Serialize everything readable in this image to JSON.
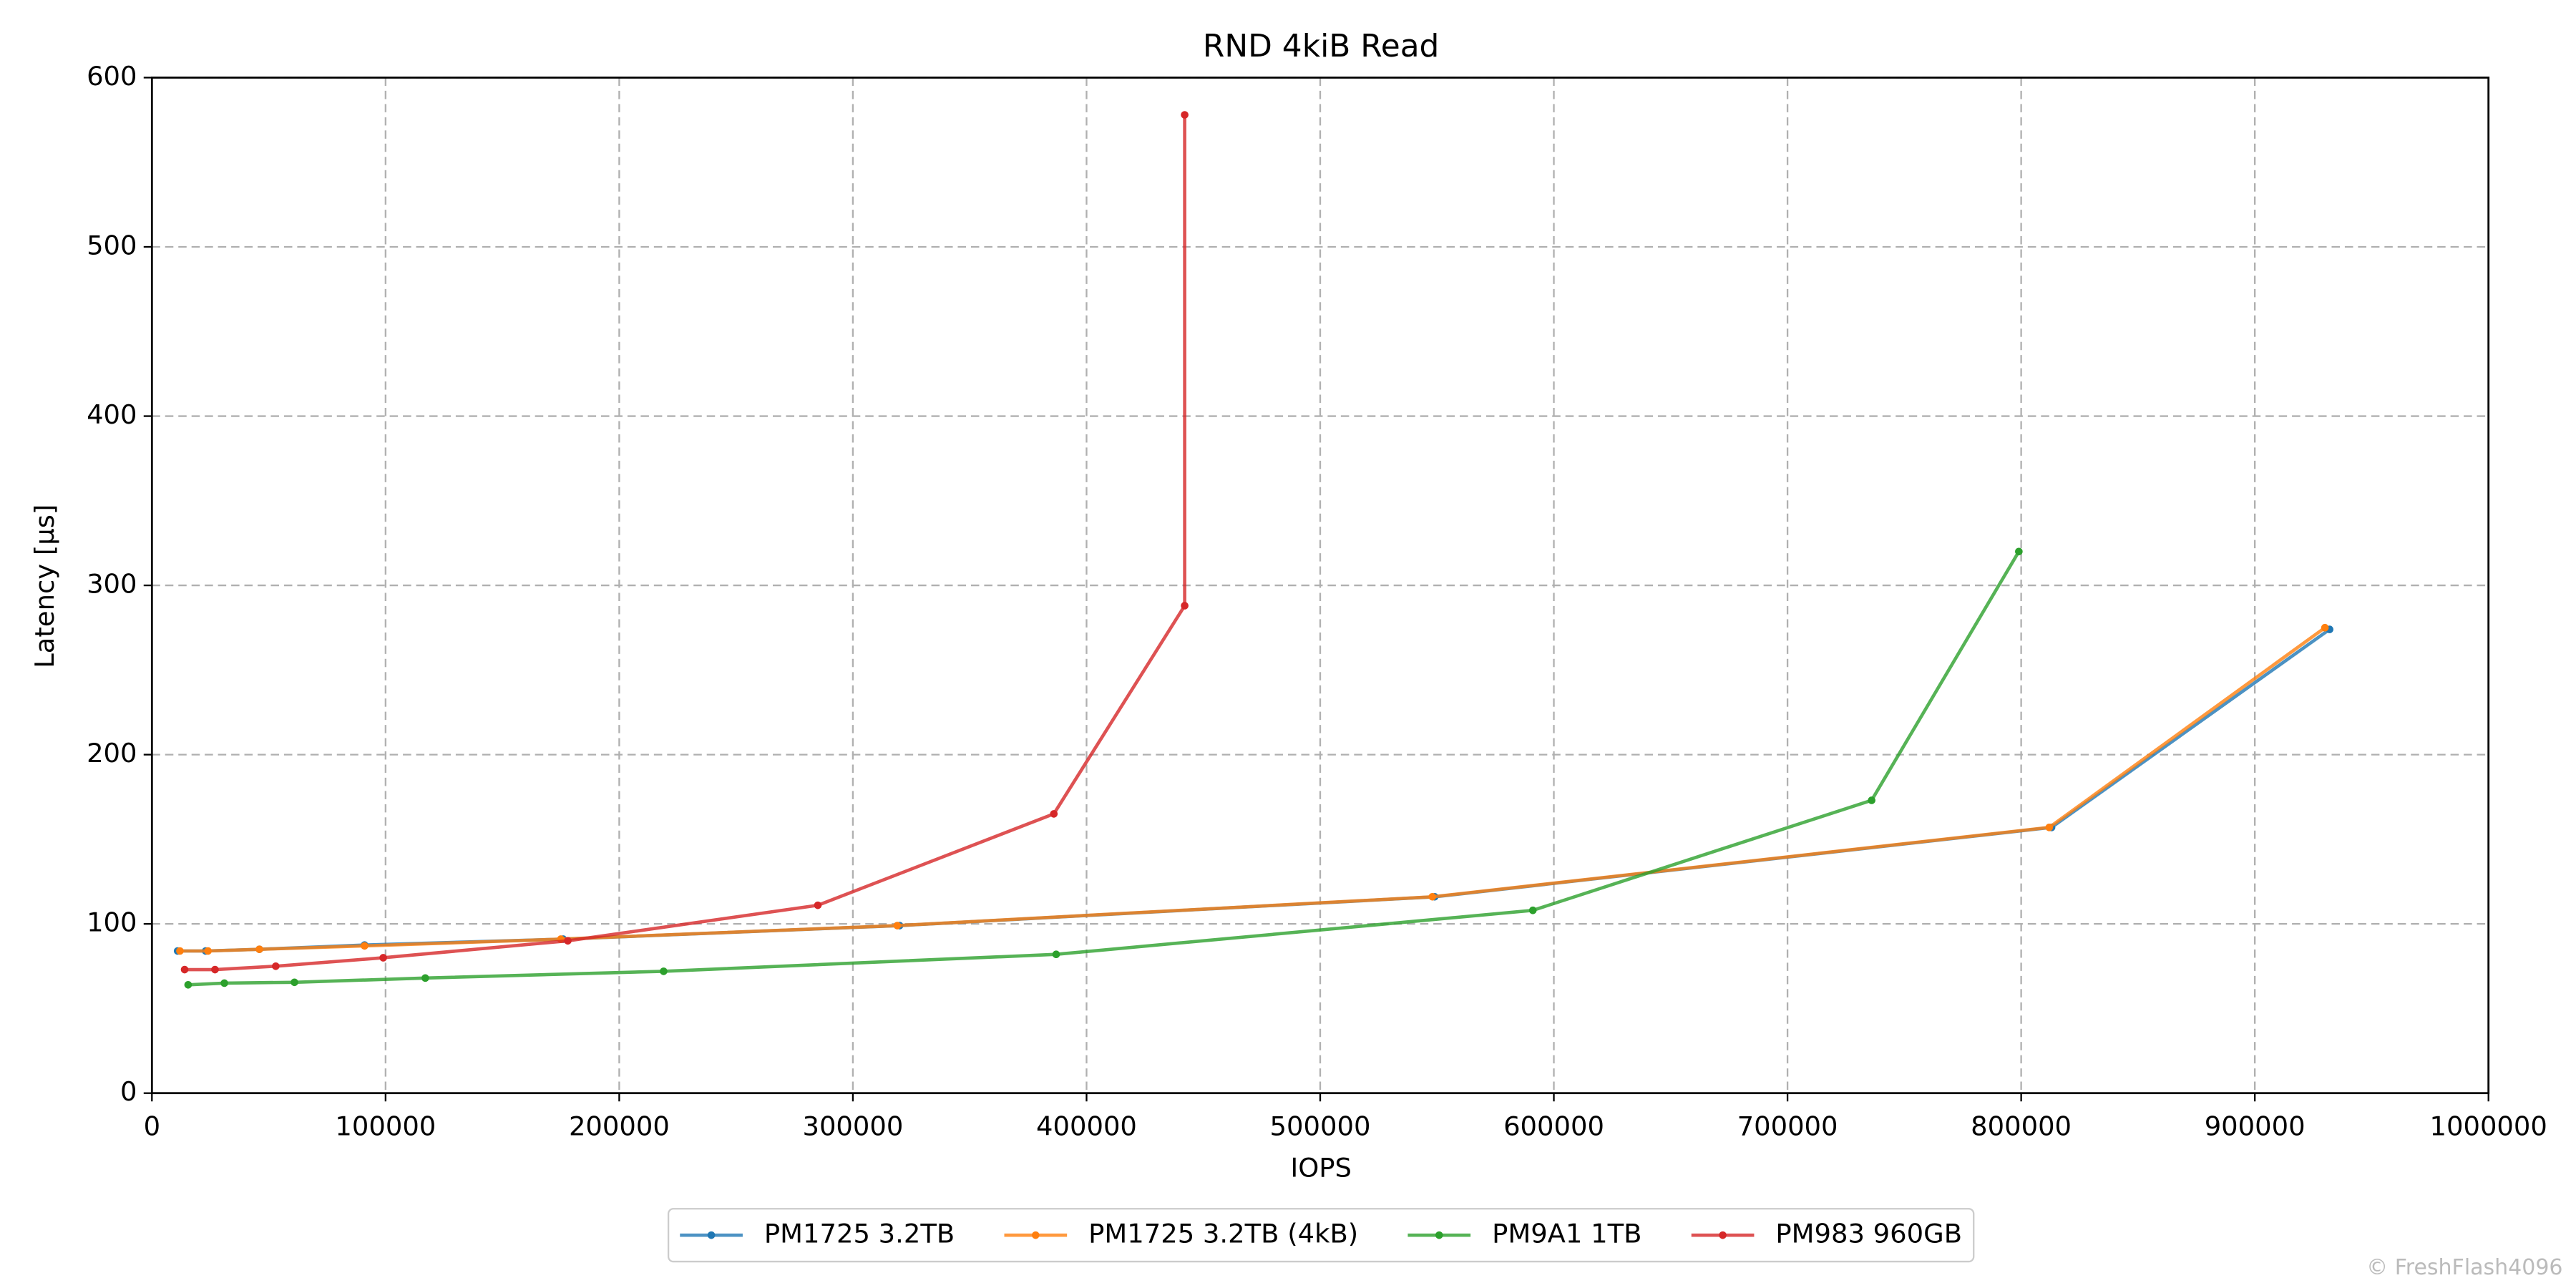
{
  "chart_data": {
    "type": "line",
    "title": "RND 4kiB Read",
    "xlabel": "IOPS",
    "ylabel": "Latency [µs]",
    "xlim": [
      0,
      1000000
    ],
    "xticks": [
      0,
      100000,
      200000,
      300000,
      400000,
      500000,
      600000,
      700000,
      800000,
      900000,
      1000000
    ],
    "ylim": [
      0,
      600
    ],
    "yticks": [
      0,
      100,
      200,
      300,
      400,
      500,
      600
    ],
    "grid": true,
    "legend": "bottom",
    "watermark": "© FreshFlash4096",
    "series": [
      {
        "name": "PM1725 3.2TB",
        "color": "#1f77b4",
        "x": [
          11000,
          23000,
          46000,
          91000,
          176000,
          320000,
          549000,
          813000,
          932000
        ],
        "values": [
          84,
          84,
          85,
          87.5,
          91,
          99,
          116,
          157,
          274
        ]
      },
      {
        "name": "PM1725 3.2TB (4kB)",
        "color": "#ff7f0e",
        "x": [
          12000,
          24000,
          46000,
          91000,
          175000,
          319000,
          548000,
          812000,
          930000
        ],
        "values": [
          84,
          84,
          85,
          87,
          91,
          99,
          116,
          157,
          275
        ]
      },
      {
        "name": "PM9A1 1TB",
        "color": "#2ca02c",
        "x": [
          15500,
          31000,
          61000,
          117000,
          219000,
          387000,
          591000,
          736000,
          799000
        ],
        "values": [
          64,
          65,
          65.5,
          68,
          72,
          82,
          108,
          173,
          320
        ]
      },
      {
        "name": "PM983 960GB",
        "color": "#d62728",
        "x": [
          14000,
          27000,
          53000,
          99000,
          178000,
          285000,
          386000,
          442000,
          442000
        ],
        "values": [
          73,
          73,
          75,
          80,
          90,
          111,
          165,
          288,
          578
        ]
      }
    ]
  }
}
